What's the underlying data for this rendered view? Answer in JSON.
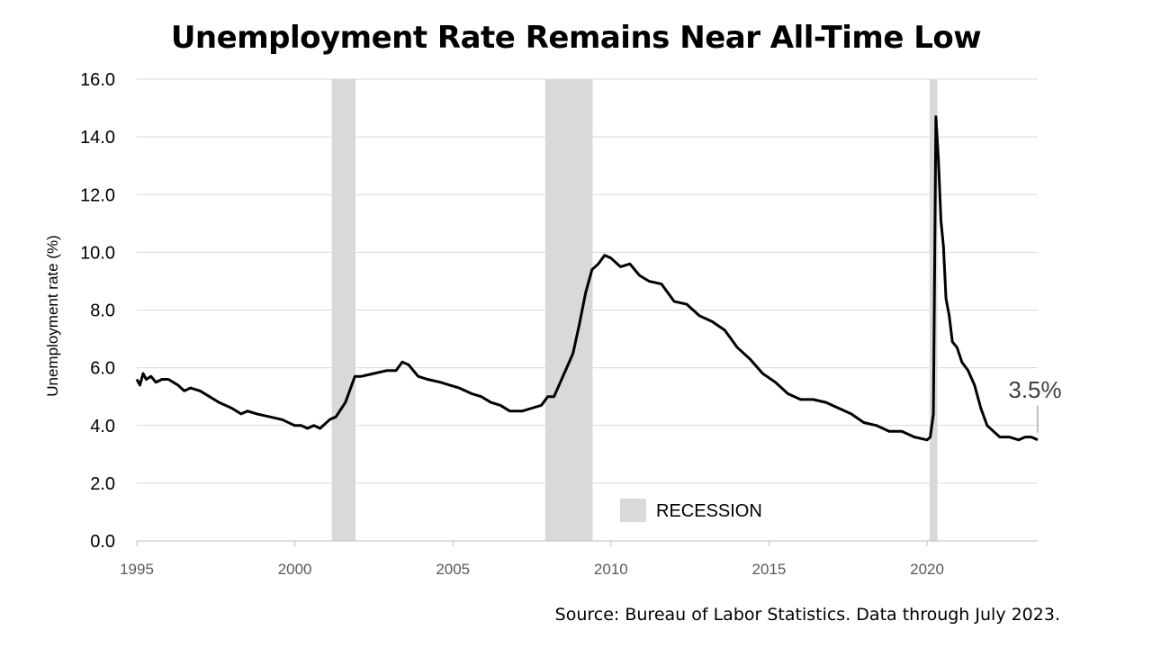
{
  "chart_data": {
    "type": "line",
    "title": "Unemployment Rate Remains Near All-Time Low",
    "ylabel": "Unemployment rate (%)",
    "xlabel": "",
    "xlim": [
      1995.0,
      2023.5
    ],
    "ylim": [
      0,
      16
    ],
    "x_ticks": [
      1995,
      2000,
      2005,
      2010,
      2015,
      2020
    ],
    "x_tick_labels": [
      "1995",
      "2000",
      "2005",
      "2010",
      "2015",
      "2020"
    ],
    "y_ticks": [
      0,
      2,
      4,
      6,
      8,
      10,
      12,
      14,
      16
    ],
    "y_tick_labels": [
      "0.0",
      "2.0",
      "4.0",
      "6.0",
      "8.0",
      "10.0",
      "12.0",
      "14.0",
      "16.0"
    ],
    "grid": "horizontal",
    "legend": {
      "label": "RECESSION",
      "placement": "bottom-center",
      "color": "#d9d9d9"
    },
    "recessions": [
      {
        "start": 2001.17,
        "end": 2001.92
      },
      {
        "start": 2007.92,
        "end": 2009.42
      },
      {
        "start": 2020.08,
        "end": 2020.33
      }
    ],
    "annotation": {
      "text": "3.5%",
      "x": 2023.5,
      "y": 3.5
    },
    "line_color": "#000000",
    "series": [
      {
        "x": [
          1995.0,
          1995.1,
          1995.2,
          1995.3,
          1995.45,
          1995.6,
          1995.8,
          1996.0,
          1996.3,
          1996.5,
          1996.7,
          1997.0,
          1997.3,
          1997.6,
          1998.0,
          1998.3,
          1998.5,
          1998.8,
          1999.2,
          1999.6,
          2000.0,
          2000.2,
          2000.4,
          2000.6,
          2000.8,
          2001.1,
          2001.3,
          2001.6,
          2001.9,
          2002.1,
          2002.5,
          2002.9,
          2003.2,
          2003.4,
          2003.6,
          2003.9,
          2004.2,
          2004.6,
          2004.9,
          2005.2,
          2005.6,
          2005.9,
          2006.2,
          2006.5,
          2006.8,
          2007.2,
          2007.5,
          2007.8,
          2008.0,
          2008.2,
          2008.4,
          2008.6,
          2008.8,
          2009.0,
          2009.2,
          2009.4,
          2009.6,
          2009.8,
          2010.0,
          2010.3,
          2010.6,
          2010.9,
          2011.2,
          2011.6,
          2012.0,
          2012.4,
          2012.8,
          2013.2,
          2013.6,
          2014.0,
          2014.4,
          2014.8,
          2015.2,
          2015.6,
          2016.0,
          2016.4,
          2016.8,
          2017.2,
          2017.6,
          2018.0,
          2018.4,
          2018.8,
          2019.2,
          2019.6,
          2020.0,
          2020.1,
          2020.2,
          2020.28,
          2020.36,
          2020.44,
          2020.52,
          2020.6,
          2020.7,
          2020.8,
          2020.95,
          2021.1,
          2021.3,
          2021.5,
          2021.7,
          2021.9,
          2022.1,
          2022.3,
          2022.6,
          2022.9,
          2023.1,
          2023.3,
          2023.5
        ],
        "values": [
          5.6,
          5.4,
          5.8,
          5.6,
          5.7,
          5.5,
          5.6,
          5.6,
          5.4,
          5.2,
          5.3,
          5.2,
          5.0,
          4.8,
          4.6,
          4.4,
          4.5,
          4.4,
          4.3,
          4.2,
          4.0,
          4.0,
          3.9,
          4.0,
          3.9,
          4.2,
          4.3,
          4.8,
          5.7,
          5.7,
          5.8,
          5.9,
          5.9,
          6.2,
          6.1,
          5.7,
          5.6,
          5.5,
          5.4,
          5.3,
          5.1,
          5.0,
          4.8,
          4.7,
          4.5,
          4.5,
          4.6,
          4.7,
          5.0,
          5.0,
          5.5,
          6.0,
          6.5,
          7.5,
          8.6,
          9.4,
          9.6,
          9.9,
          9.8,
          9.5,
          9.6,
          9.2,
          9.0,
          8.9,
          8.3,
          8.2,
          7.8,
          7.6,
          7.3,
          6.7,
          6.3,
          5.8,
          5.5,
          5.1,
          4.9,
          4.9,
          4.8,
          4.6,
          4.4,
          4.1,
          4.0,
          3.8,
          3.8,
          3.6,
          3.5,
          3.6,
          4.4,
          14.7,
          13.2,
          11.1,
          10.2,
          8.4,
          7.8,
          6.9,
          6.7,
          6.2,
          5.9,
          5.4,
          4.6,
          4.0,
          3.8,
          3.6,
          3.6,
          3.5,
          3.6,
          3.6,
          3.5
        ]
      }
    ]
  }
}
